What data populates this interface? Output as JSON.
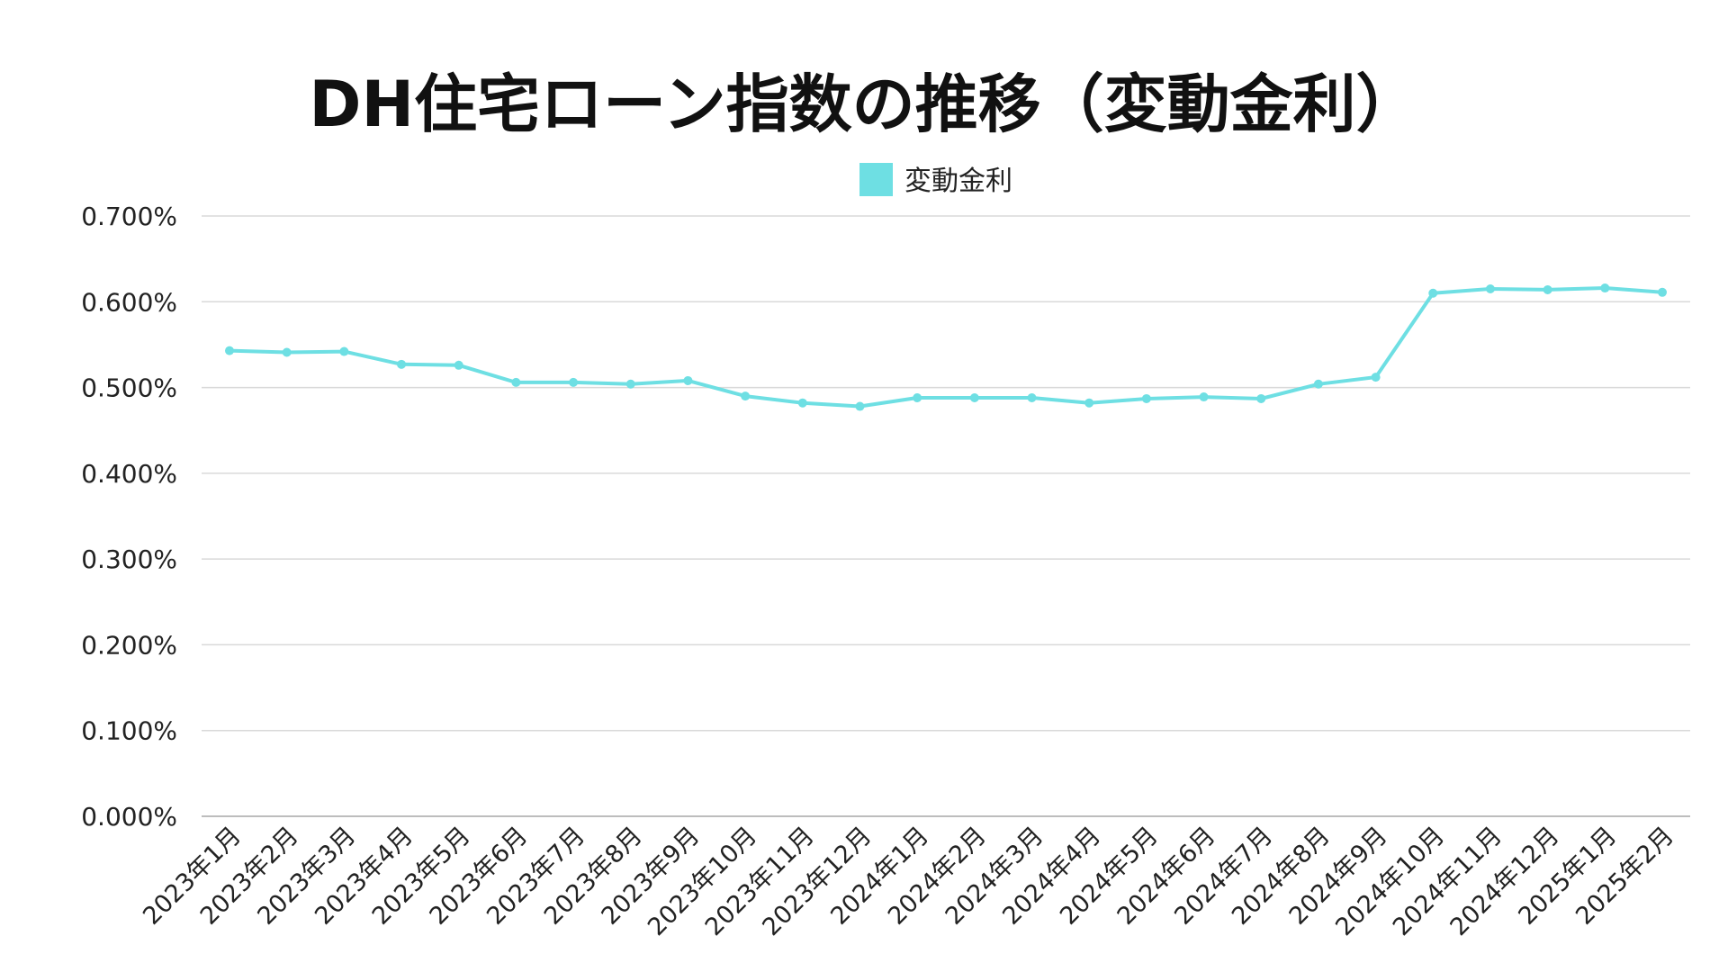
{
  "chart_data": {
    "type": "line",
    "title": "DH住宅ローン指数の推移（変動金利）",
    "xlabel": "",
    "ylabel": "",
    "categories": [
      "2023年1月",
      "2023年2月",
      "2023年3月",
      "2023年4月",
      "2023年5月",
      "2023年6月",
      "2023年7月",
      "2023年8月",
      "2023年9月",
      "2023年10月",
      "2023年11月",
      "2023年12月",
      "2024年1月",
      "2024年2月",
      "2024年3月",
      "2024年4月",
      "2024年5月",
      "2024年6月",
      "2024年7月",
      "2024年8月",
      "2024年9月",
      "2024年10月",
      "2024年11月",
      "2024年12月",
      "2025年1月",
      "2025年2月"
    ],
    "series": [
      {
        "name": "変動金利",
        "color": "#6EDFE3",
        "values": [
          0.543,
          0.541,
          0.542,
          0.527,
          0.526,
          0.506,
          0.506,
          0.504,
          0.508,
          0.49,
          0.482,
          0.478,
          0.488,
          0.488,
          0.488,
          0.482,
          0.487,
          0.489,
          0.487,
          0.504,
          0.512,
          0.61,
          0.615,
          0.614,
          0.616,
          0.611
        ]
      }
    ],
    "ylim": [
      0,
      0.7
    ],
    "yticks": [
      "0.000%",
      "0.100%",
      "0.200%",
      "0.300%",
      "0.400%",
      "0.500%",
      "0.600%",
      "0.700%"
    ],
    "grid": true,
    "legend_position": "top-center"
  }
}
